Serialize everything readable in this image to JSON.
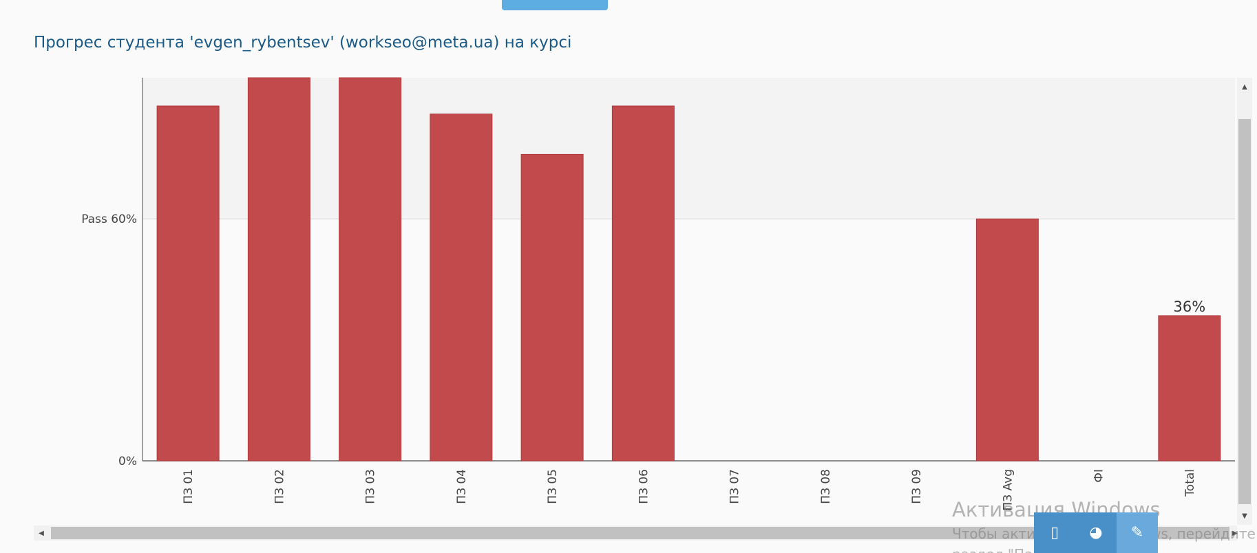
{
  "page": {
    "title": "Прогрес студента 'evgen_rybentsev' (workseo@meta.ua) на курсі"
  },
  "colors": {
    "bar": "#c24a4d",
    "bar_stroke": "#b03a3d",
    "band_above_pass": "#f3f3f3",
    "title": "#1a5a87",
    "axis": "#666666"
  },
  "chart_data": {
    "type": "bar",
    "categories": [
      "ПЗ 01",
      "ПЗ 02",
      "ПЗ 03",
      "ПЗ 04",
      "ПЗ 05",
      "ПЗ 06",
      "ПЗ 07",
      "ПЗ 08",
      "ПЗ 09",
      "ПЗ Avg",
      "ФІ",
      "Total"
    ],
    "values": [
      88,
      95,
      95,
      86,
      76,
      88,
      0,
      0,
      0,
      60,
      0,
      36
    ],
    "data_labels": {
      "Total": "36%"
    },
    "y_ticks": [
      {
        "value": 0,
        "label": "0%"
      },
      {
        "value": 60,
        "label": "Pass 60%"
      }
    ],
    "pass_threshold": 60,
    "ylim": [
      0,
      95
    ],
    "title": "",
    "xlabel": "",
    "ylabel": ""
  },
  "scrollbars": {
    "up_arrow": "▲",
    "down_arrow": "▼",
    "left_arrow": "◀",
    "right_arrow": "▶"
  },
  "watermark": {
    "title": "Активация Windows",
    "subtitle": "Чтобы активировать Windows, перейдите в",
    "subtitle2": "раздел \"Параметры\"."
  },
  "taskbar": {
    "icons": [
      "usb-drive-icon",
      "paint-icon",
      "pen-icon"
    ],
    "glyphs": [
      "▯",
      "◕",
      "✎"
    ]
  }
}
